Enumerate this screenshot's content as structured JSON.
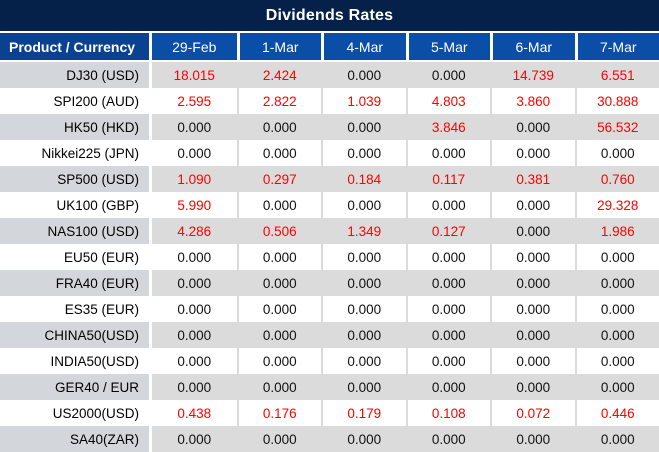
{
  "title": "Dividends Rates",
  "colors": {
    "title_bar_bg": "#05214a",
    "header_bg": "#0b4ea8",
    "header_product_bg": "#0a4190",
    "header_text": "#ffffff",
    "stripe_values_bg": "#dbdbdb",
    "stripe_product_bg": "#d3d7db",
    "positive_value": "#fe0000",
    "zero_value": "#111111"
  },
  "table": {
    "product_header": "Product / Currency",
    "date_headers": [
      "29-Feb",
      "1-Mar",
      "4-Mar",
      "5-Mar",
      "6-Mar",
      "7-Mar"
    ],
    "rows": [
      {
        "product": "DJ30 (USD)",
        "values": [
          "18.015",
          "2.424",
          "0.000",
          "0.000",
          "14.739",
          "6.551"
        ]
      },
      {
        "product": "SPI200 (AUD)",
        "values": [
          "2.595",
          "2.822",
          "1.039",
          "4.803",
          "3.860",
          "30.888"
        ]
      },
      {
        "product": "HK50 (HKD)",
        "values": [
          "0.000",
          "0.000",
          "0.000",
          "3.846",
          "0.000",
          "56.532"
        ]
      },
      {
        "product": "Nikkei225 (JPN)",
        "values": [
          "0.000",
          "0.000",
          "0.000",
          "0.000",
          "0.000",
          "0.000"
        ]
      },
      {
        "product": "SP500 (USD)",
        "values": [
          "1.090",
          "0.297",
          "0.184",
          "0.117",
          "0.381",
          "0.760"
        ]
      },
      {
        "product": "UK100 (GBP)",
        "values": [
          "5.990",
          "0.000",
          "0.000",
          "0.000",
          "0.000",
          "29.328"
        ]
      },
      {
        "product": "NAS100 (USD)",
        "values": [
          "4.286",
          "0.506",
          "1.349",
          "0.127",
          "0.000",
          "1.986"
        ]
      },
      {
        "product": "EU50 (EUR)",
        "values": [
          "0.000",
          "0.000",
          "0.000",
          "0.000",
          "0.000",
          "0.000"
        ]
      },
      {
        "product": "FRA40 (EUR)",
        "values": [
          "0.000",
          "0.000",
          "0.000",
          "0.000",
          "0.000",
          "0.000"
        ]
      },
      {
        "product": "ES35 (EUR)",
        "values": [
          "0.000",
          "0.000",
          "0.000",
          "0.000",
          "0.000",
          "0.000"
        ]
      },
      {
        "product": "CHINA50(USD)",
        "values": [
          "0.000",
          "0.000",
          "0.000",
          "0.000",
          "0.000",
          "0.000"
        ]
      },
      {
        "product": "INDIA50(USD)",
        "values": [
          "0.000",
          "0.000",
          "0.000",
          "0.000",
          "0.000",
          "0.000"
        ]
      },
      {
        "product": "GER40 / EUR",
        "values": [
          "0.000",
          "0.000",
          "0.000",
          "0.000",
          "0.000",
          "0.000"
        ]
      },
      {
        "product": "US2000(USD)",
        "values": [
          "0.438",
          "0.176",
          "0.179",
          "0.108",
          "0.072",
          "0.446"
        ]
      },
      {
        "product": "SA40(ZAR)",
        "values": [
          "0.000",
          "0.000",
          "0.000",
          "0.000",
          "0.000",
          "0.000"
        ]
      }
    ]
  }
}
